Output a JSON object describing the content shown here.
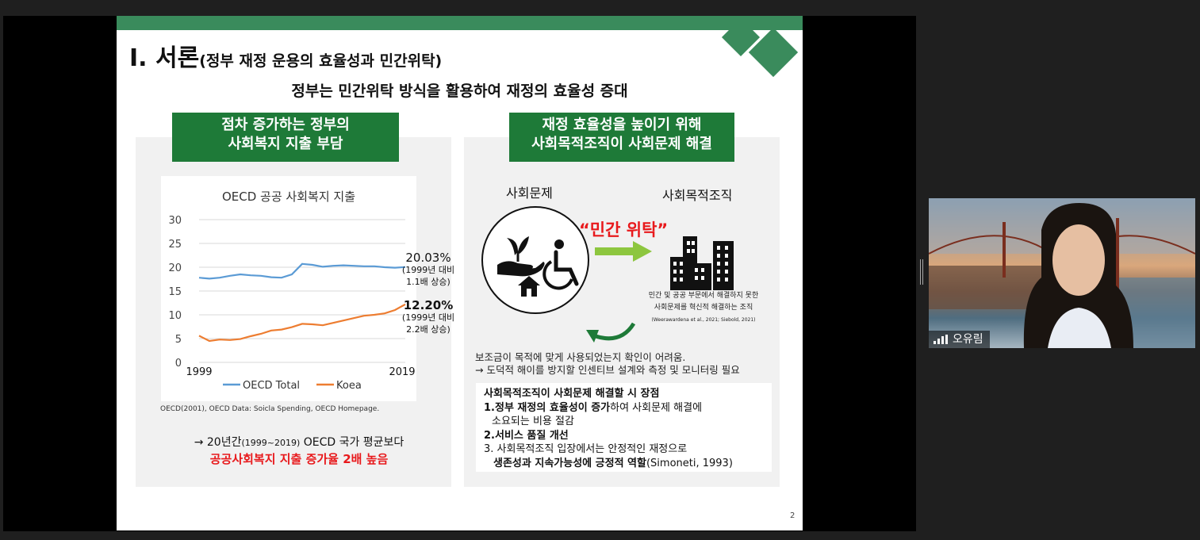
{
  "slide": {
    "title_main": "I. 서론",
    "title_sub": "(정부 재정 운용의 효율성과 민간위탁)",
    "subtitle": "정부는 민간위탁 방식을 활용하여 재정의 효율성 증대",
    "left_header_line1": "점차 증가하는 정부의",
    "left_header_line2": "사회복지 지출 부담",
    "right_header_line1": "재정 효율성을 높이기 위해",
    "right_header_line2": "사회목적조직이 사회문제 해결",
    "source": "OECD(2001), OECD Data: Soicla Spending, OECD Homepage.",
    "conclusion_line1_arrow": "→ ",
    "conclusion_line1_a": "20년간",
    "conclusion_line1_b": "(1999~2019)",
    "conclusion_line1_c": " OECD 국가 평균보다",
    "conclusion_line2": "공공사회복지 지출 증가율 2배 높음",
    "social_problem_label": "사회문제",
    "social_org_label": "사회목적조직",
    "private_consign": "“민간 위탁”",
    "org_desc_line1": "민간 및 공공 부문에서 해결하지 못한",
    "org_desc_line2": "사회문제를 혁신적 해결하는 조직",
    "org_desc_ref": "(Weerawardena et al., 2021; Siebold, 2021)",
    "check_line1": "보조금이 목적에 맞게 사용되었는지 확인이 어려움.",
    "check_line2": "→ 도덕적 해이를 방지할 인센티브 설계와 측정 및 모니터링 필요",
    "adv_title": "사회목적조직이 사회문제 해결할 시 장점",
    "adv_1_bold": "1.정부 재정의 효율성이 증가",
    "adv_1_rest": "하여 사회문제 해결에",
    "adv_1_line2": "소요되는 비용 절감",
    "adv_2": "2.서비스 품질 개선",
    "adv_3_line1": "3. 사회목적조직 입장에서는 안정적인 재정으로",
    "adv_3_bold": "생존성과 지속가능성에 긍정적 역할",
    "adv_3_ref": "(Simoneti, 1993)",
    "page_number": "2"
  },
  "chart_data": {
    "type": "line",
    "title": "OECD 공공 사회복지 지출",
    "x": [
      1999,
      2000,
      2001,
      2002,
      2003,
      2004,
      2005,
      2006,
      2007,
      2008,
      2009,
      2010,
      2011,
      2012,
      2013,
      2014,
      2015,
      2016,
      2017,
      2018,
      2019
    ],
    "series": [
      {
        "name": "OECD Total",
        "color": "#5b9bd5",
        "values": [
          17.8,
          17.6,
          17.8,
          18.2,
          18.5,
          18.3,
          18.2,
          17.9,
          17.8,
          18.5,
          20.7,
          20.5,
          20.1,
          20.3,
          20.4,
          20.3,
          20.2,
          20.2,
          20.0,
          19.9,
          20.03
        ]
      },
      {
        "name": "Koea",
        "color": "#ed7d31",
        "values": [
          5.6,
          4.5,
          4.8,
          4.7,
          4.9,
          5.5,
          6.0,
          6.7,
          6.9,
          7.4,
          8.1,
          8.0,
          7.8,
          8.3,
          8.8,
          9.3,
          9.8,
          10.0,
          10.3,
          11.0,
          12.2
        ]
      }
    ],
    "ylim": [
      0,
      30
    ],
    "yticks": [
      0,
      5,
      10,
      15,
      20,
      25,
      30
    ],
    "xtick_labels": [
      "1999",
      "2019"
    ],
    "grid": true,
    "legend": "bottom",
    "annotations": [
      {
        "value": "20.03%",
        "note1": "(1999년 대비",
        "note2": "1.1배 상승)"
      },
      {
        "value": "12.20%",
        "note1": "(1999년 대비",
        "note2": "2.2배 상승)"
      }
    ]
  },
  "participant": {
    "name": "오유림"
  }
}
